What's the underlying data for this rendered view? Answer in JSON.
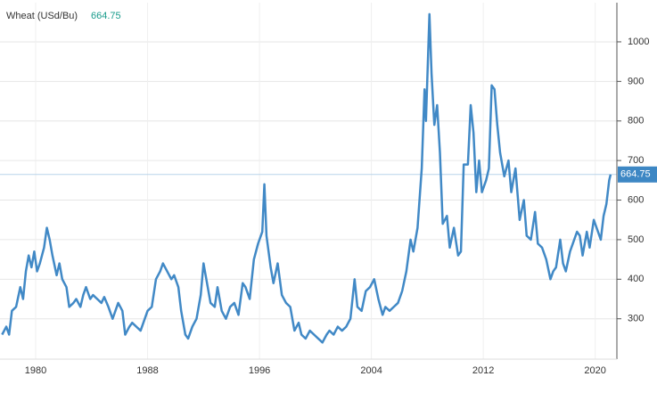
{
  "chart_data": {
    "type": "line",
    "x": [
      1977.6,
      1977.9,
      1978.1,
      1978.3,
      1978.6,
      1978.9,
      1979.1,
      1979.3,
      1979.5,
      1979.7,
      1979.9,
      1980.1,
      1980.3,
      1980.6,
      1980.8,
      1981.0,
      1981.2,
      1981.5,
      1981.7,
      1981.9,
      1982.2,
      1982.4,
      1982.7,
      1982.9,
      1983.2,
      1983.4,
      1983.6,
      1983.9,
      1984.1,
      1984.4,
      1984.7,
      1984.9,
      1985.2,
      1985.5,
      1985.7,
      1985.9,
      1986.2,
      1986.4,
      1986.7,
      1986.9,
      1987.2,
      1987.5,
      1987.8,
      1988.0,
      1988.3,
      1988.6,
      1988.9,
      1989.1,
      1989.4,
      1989.7,
      1989.9,
      1990.2,
      1990.4,
      1990.7,
      1990.9,
      1991.2,
      1991.5,
      1991.8,
      1992.0,
      1992.3,
      1992.5,
      1992.8,
      1993.0,
      1993.3,
      1993.6,
      1993.9,
      1994.2,
      1994.5,
      1994.8,
      1995.0,
      1995.3,
      1995.6,
      1995.9,
      1996.2,
      1996.35,
      1996.5,
      1996.8,
      1997.0,
      1997.3,
      1997.6,
      1997.9,
      1998.2,
      1998.5,
      1998.8,
      1999.0,
      1999.3,
      1999.6,
      1999.9,
      2000.2,
      2000.5,
      2000.8,
      2001.0,
      2001.3,
      2001.6,
      2001.9,
      2002.2,
      2002.5,
      2002.8,
      2003.0,
      2003.3,
      2003.6,
      2003.9,
      2004.2,
      2004.5,
      2004.8,
      2005.0,
      2005.3,
      2005.6,
      2005.9,
      2006.2,
      2006.5,
      2006.8,
      2007.0,
      2007.3,
      2007.6,
      2007.8,
      2007.9,
      2008.15,
      2008.3,
      2008.5,
      2008.7,
      2008.9,
      2009.1,
      2009.4,
      2009.6,
      2009.9,
      2010.2,
      2010.4,
      2010.6,
      2010.9,
      2011.1,
      2011.3,
      2011.5,
      2011.7,
      2011.9,
      2012.2,
      2012.4,
      2012.6,
      2012.8,
      2013.0,
      2013.2,
      2013.5,
      2013.8,
      2014.0,
      2014.3,
      2014.6,
      2014.9,
      2015.1,
      2015.4,
      2015.7,
      2015.9,
      2016.2,
      2016.5,
      2016.8,
      2017.0,
      2017.2,
      2017.5,
      2017.7,
      2017.9,
      2018.2,
      2018.5,
      2018.7,
      2018.9,
      2019.1,
      2019.4,
      2019.6,
      2019.9,
      2020.1,
      2020.4,
      2020.6,
      2020.8,
      2021.0,
      2021.1
    ],
    "series": [
      {
        "name": "Wheat (USd/Bu)",
        "color": "#4189c6",
        "values": [
          260,
          280,
          260,
          320,
          330,
          380,
          350,
          420,
          460,
          430,
          470,
          420,
          440,
          480,
          530,
          500,
          460,
          410,
          440,
          400,
          380,
          330,
          340,
          350,
          330,
          360,
          380,
          350,
          360,
          350,
          340,
          355,
          330,
          300,
          320,
          340,
          320,
          260,
          280,
          290,
          280,
          270,
          300,
          320,
          330,
          400,
          420,
          440,
          420,
          400,
          410,
          380,
          320,
          260,
          250,
          280,
          300,
          360,
          440,
          380,
          340,
          330,
          380,
          320,
          300,
          330,
          340,
          310,
          390,
          380,
          350,
          450,
          490,
          520,
          640,
          510,
          430,
          390,
          440,
          360,
          340,
          330,
          270,
          290,
          260,
          250,
          270,
          260,
          250,
          240,
          260,
          270,
          260,
          280,
          270,
          280,
          300,
          400,
          330,
          320,
          370,
          380,
          400,
          350,
          310,
          330,
          320,
          330,
          340,
          370,
          420,
          500,
          470,
          530,
          680,
          880,
          800,
          1070,
          920,
          790,
          840,
          720,
          540,
          560,
          480,
          530,
          460,
          470,
          690,
          690,
          840,
          770,
          620,
          700,
          620,
          650,
          680,
          890,
          880,
          790,
          720,
          660,
          700,
          620,
          680,
          550,
          600,
          510,
          500,
          570,
          490,
          480,
          450,
          400,
          420,
          430,
          500,
          440,
          420,
          470,
          500,
          520,
          510,
          460,
          520,
          480,
          550,
          530,
          500,
          560,
          590,
          650,
          664.75
        ]
      }
    ],
    "xlim": [
      1977.45,
      2021.55
    ],
    "xticks": [
      1980,
      1988,
      1996,
      2004,
      2012,
      2020
    ],
    "ylim": [
      198,
      1099
    ],
    "yticks": [
      300,
      400,
      500,
      600,
      700,
      800,
      900,
      1000
    ],
    "grid": true
  }
}
